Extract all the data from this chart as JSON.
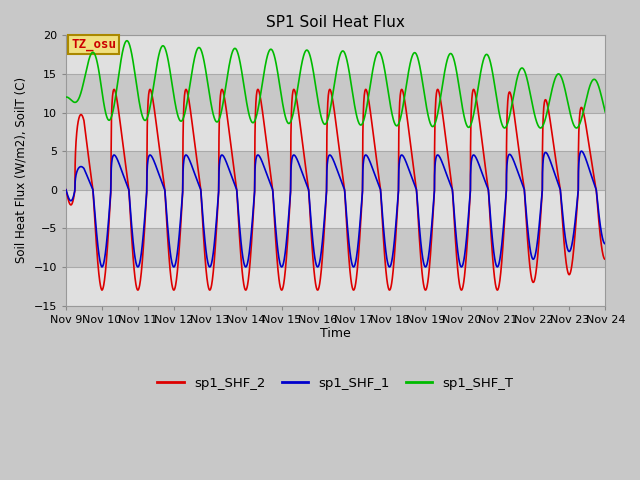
{
  "title": "SP1 Soil Heat Flux",
  "ylabel": "Soil Heat Flux (W/m2), SoilT (C)",
  "xlabel": "Time",
  "ylim": [
    -15,
    20
  ],
  "yticks": [
    -15,
    -10,
    -5,
    0,
    5,
    10,
    15,
    20
  ],
  "xlim_days": [
    0,
    15
  ],
  "xtick_labels": [
    "Nov 9",
    "Nov 10",
    "Nov 11",
    "Nov 12",
    "Nov 13",
    "Nov 14",
    "Nov 15",
    "Nov 16",
    "Nov 17",
    "Nov 18",
    "Nov 19",
    "Nov 20",
    "Nov 21",
    "Nov 22",
    "Nov 23",
    "Nov 24"
  ],
  "bg_color": "#c8c8c8",
  "plot_bg_color": "#c8c8c8",
  "hband_light": "#e0e0e0",
  "hband_dark": "#c8c8c8",
  "grid_color": "#aaaaaa",
  "line_colors": {
    "shf2": "#dd0000",
    "shf1": "#0000cc",
    "shft": "#00bb00"
  },
  "line_widths": {
    "shf2": 1.2,
    "shf1": 1.2,
    "shft": 1.2
  },
  "legend_labels": [
    "sp1_SHF_2",
    "sp1_SHF_1",
    "sp1_SHF_T"
  ],
  "annotation_text": "TZ_osu",
  "annotation_color": "#cc0000",
  "annotation_bg": "#f0e080",
  "annotation_border": "#aa8800",
  "figsize": [
    6.4,
    4.8
  ],
  "dpi": 100
}
